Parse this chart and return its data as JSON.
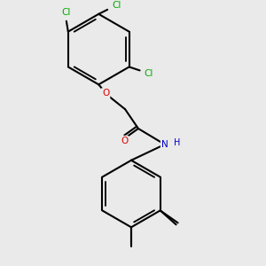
{
  "background_color": "#eaeaea",
  "bond_color": "#000000",
  "bond_width": 1.5,
  "atom_colors": {
    "C": "#000000",
    "N": "#0000cc",
    "O": "#dd0000",
    "Cl": "#00aa00",
    "H": "#000000"
  },
  "font_size": 7.5,
  "label_fontsize": 7.0
}
